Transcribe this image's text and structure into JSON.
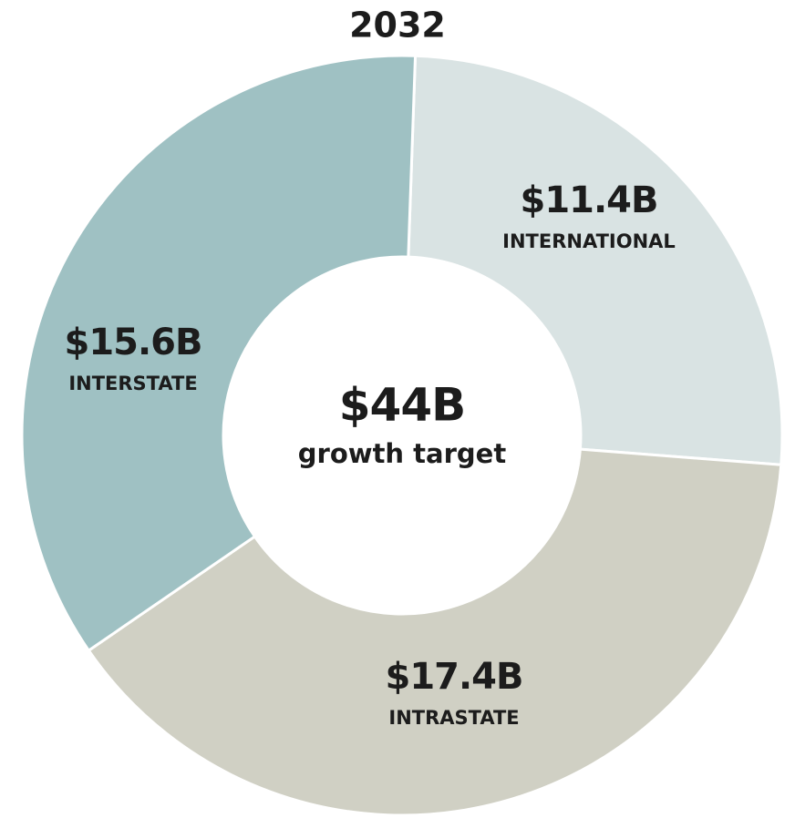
{
  "chart_data": {
    "type": "donut",
    "title": "2032",
    "categories": [
      "INTERNATIONAL",
      "INTRASTATE",
      "INTERSTATE"
    ],
    "values": [
      11.4,
      17.4,
      15.6
    ],
    "value_labels": [
      "$11.4B",
      "$17.4B",
      "$15.6B"
    ],
    "colors": [
      "#d9e3e3",
      "#d0d0c4",
      "#9fc1c3"
    ],
    "center_title": "$44B",
    "center_subtitle": "growth target"
  }
}
